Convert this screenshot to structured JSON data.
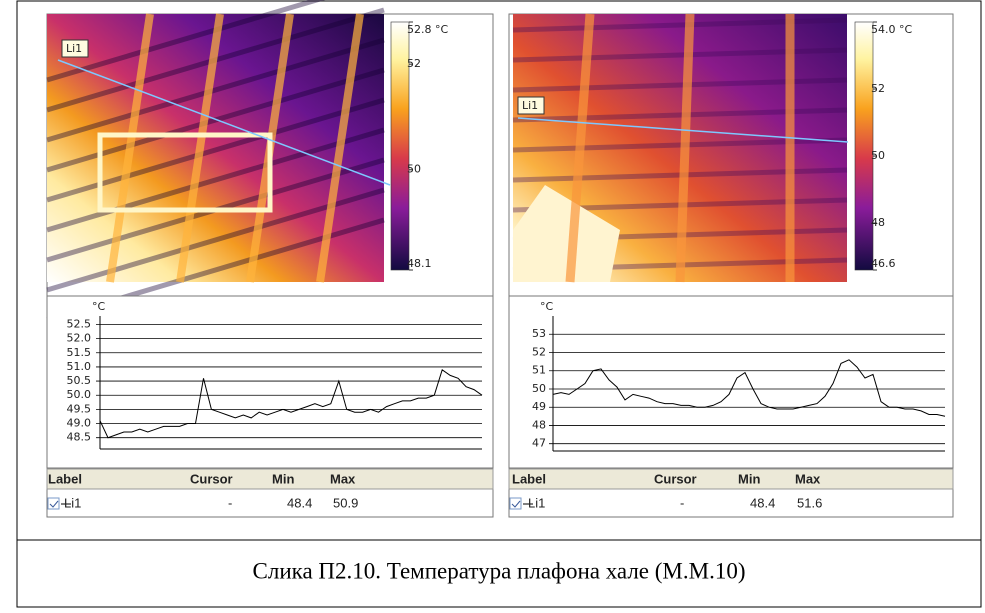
{
  "panels": [
    {
      "image": {
        "line_label": "Li1",
        "colorbar": {
          "ylim": [
            48.1,
            52.8
          ],
          "yticks": [
            {
              "value": 52.8,
              "label": "52.8 °C"
            },
            52,
            50,
            48.1
          ]
        }
      },
      "profile": {
        "type": "line",
        "y_label": "°C",
        "ylim": [
          48.1,
          52.8
        ],
        "yticks": [
          52.5,
          {
            "value": 52,
            "label": "52.0"
          },
          51.5,
          {
            "value": 51,
            "label": "51.0"
          },
          50.5,
          {
            "value": 50,
            "label": "50.0"
          },
          49.5,
          {
            "value": 49,
            "label": "49.0"
          },
          48.5
        ],
        "color": "#000000",
        "values": [
          49.1,
          48.5,
          48.6,
          48.7,
          48.7,
          48.8,
          48.7,
          48.8,
          48.9,
          48.9,
          48.9,
          49.0,
          49.0,
          50.6,
          49.5,
          49.4,
          49.3,
          49.2,
          49.3,
          49.2,
          49.4,
          49.3,
          49.4,
          49.5,
          49.4,
          49.5,
          49.6,
          49.7,
          49.6,
          49.7,
          50.5,
          49.5,
          49.4,
          49.4,
          49.5,
          49.4,
          49.6,
          49.7,
          49.8,
          49.8,
          49.9,
          49.9,
          50.0,
          50.9,
          50.7,
          50.6,
          50.3,
          50.2,
          50.0
        ]
      },
      "table": {
        "headers": [
          "Label",
          "Cursor",
          "Min",
          "Max"
        ],
        "rows": [
          [
            "Li1",
            "-",
            48.4,
            50.9
          ]
        ]
      }
    },
    {
      "image": {
        "line_label": "Li1",
        "colorbar": {
          "ylim": [
            46.6,
            54.0
          ],
          "yticks": [
            {
              "value": 54.0,
              "label": "54.0 °C"
            },
            52,
            50,
            48,
            46.6
          ]
        }
      },
      "profile": {
        "type": "line",
        "y_label": "°C",
        "ylim": [
          46.6,
          54.0
        ],
        "yticks": [
          53,
          52,
          51,
          50,
          49,
          48,
          47
        ],
        "color": "#000000",
        "values": [
          49.7,
          49.8,
          49.7,
          50.0,
          50.3,
          51.0,
          51.1,
          50.5,
          50.1,
          49.4,
          49.7,
          49.6,
          49.5,
          49.3,
          49.2,
          49.2,
          49.1,
          49.1,
          49.0,
          49.0,
          49.1,
          49.3,
          49.7,
          50.6,
          50.9,
          50.0,
          49.2,
          49.0,
          48.9,
          48.9,
          48.9,
          49.0,
          49.1,
          49.2,
          49.6,
          50.3,
          51.4,
          51.6,
          51.2,
          50.6,
          50.8,
          49.3,
          49.0,
          49.0,
          48.9,
          48.9,
          48.8,
          48.6,
          48.6,
          48.5
        ]
      },
      "table": {
        "headers": [
          "Label",
          "Cursor",
          "Min",
          "Max"
        ],
        "rows": [
          [
            "Li1",
            "-",
            48.4,
            51.6
          ]
        ]
      }
    }
  ],
  "caption": "Слика П2.10. Температура плафона хале (М.М.10)"
}
